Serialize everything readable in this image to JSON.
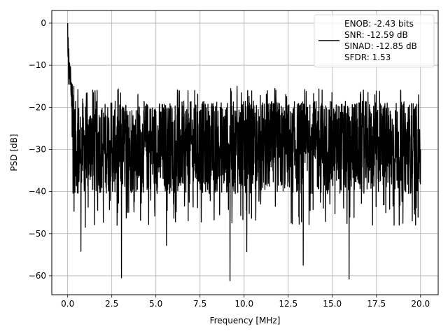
{
  "chart_data": {
    "type": "line",
    "title": "",
    "xlabel": "Frequency [MHz]",
    "ylabel": "PSD [dB]",
    "xlim": [
      -0.9,
      21.0
    ],
    "ylim": [
      -64.5,
      3.0
    ],
    "xticks": [
      0.0,
      2.5,
      5.0,
      7.5,
      10.0,
      12.5,
      15.0,
      17.5,
      20.0
    ],
    "xtick_labels": [
      "0.0",
      "2.5",
      "5.0",
      "7.5",
      "10.0",
      "12.5",
      "15.0",
      "17.5",
      "20.0"
    ],
    "yticks": [
      0,
      -10,
      -20,
      -30,
      -40,
      -50,
      -60
    ],
    "ytick_labels": [
      "0",
      "−10",
      "−20",
      "−30",
      "−40",
      "−50",
      "−60"
    ],
    "grid": true,
    "legend_position": "top-right",
    "legend_lines": [
      "ENOB: -2.43 bits",
      "SNR: -12.59 dB",
      "SINAD: -12.85 dB",
      "SFDR: 1.53"
    ],
    "series": [
      {
        "color": "#000000",
        "x_start": 0.0,
        "x_end": 20.0,
        "noise_floor_mean_db": -29.5,
        "noise_peak_db": -17.5,
        "noise_trough_db": -42.0,
        "x": [
          0.0,
          0.02,
          0.05,
          0.1,
          0.15,
          0.25,
          0.35,
          0.6,
          0.75,
          0.85,
          1.0,
          1.3,
          2.5,
          2.8,
          3.05,
          3.3,
          5.0,
          5.6,
          6.5,
          7.5,
          8.0,
          9.2,
          9.6,
          10.15,
          11.0,
          12.5,
          13.35,
          13.6,
          15.0,
          15.95,
          16.2,
          17.5,
          18.5,
          19.5,
          20.0
        ],
        "y": [
          0.0,
          -8.0,
          -14.5,
          -10.0,
          -12.5,
          -27.0,
          -15.0,
          -34.0,
          -54.2,
          -18.0,
          -48.5,
          -22.0,
          -19.0,
          -48.0,
          -60.5,
          -19.5,
          -21.0,
          -52.8,
          -20.0,
          -30.0,
          -21.0,
          -61.2,
          -15.0,
          -54.3,
          -21.0,
          -30.0,
          -57.5,
          -20.0,
          -30.0,
          -60.8,
          -20.0,
          -30.0,
          -48.0,
          -22.0,
          -30.0
        ]
      }
    ]
  }
}
